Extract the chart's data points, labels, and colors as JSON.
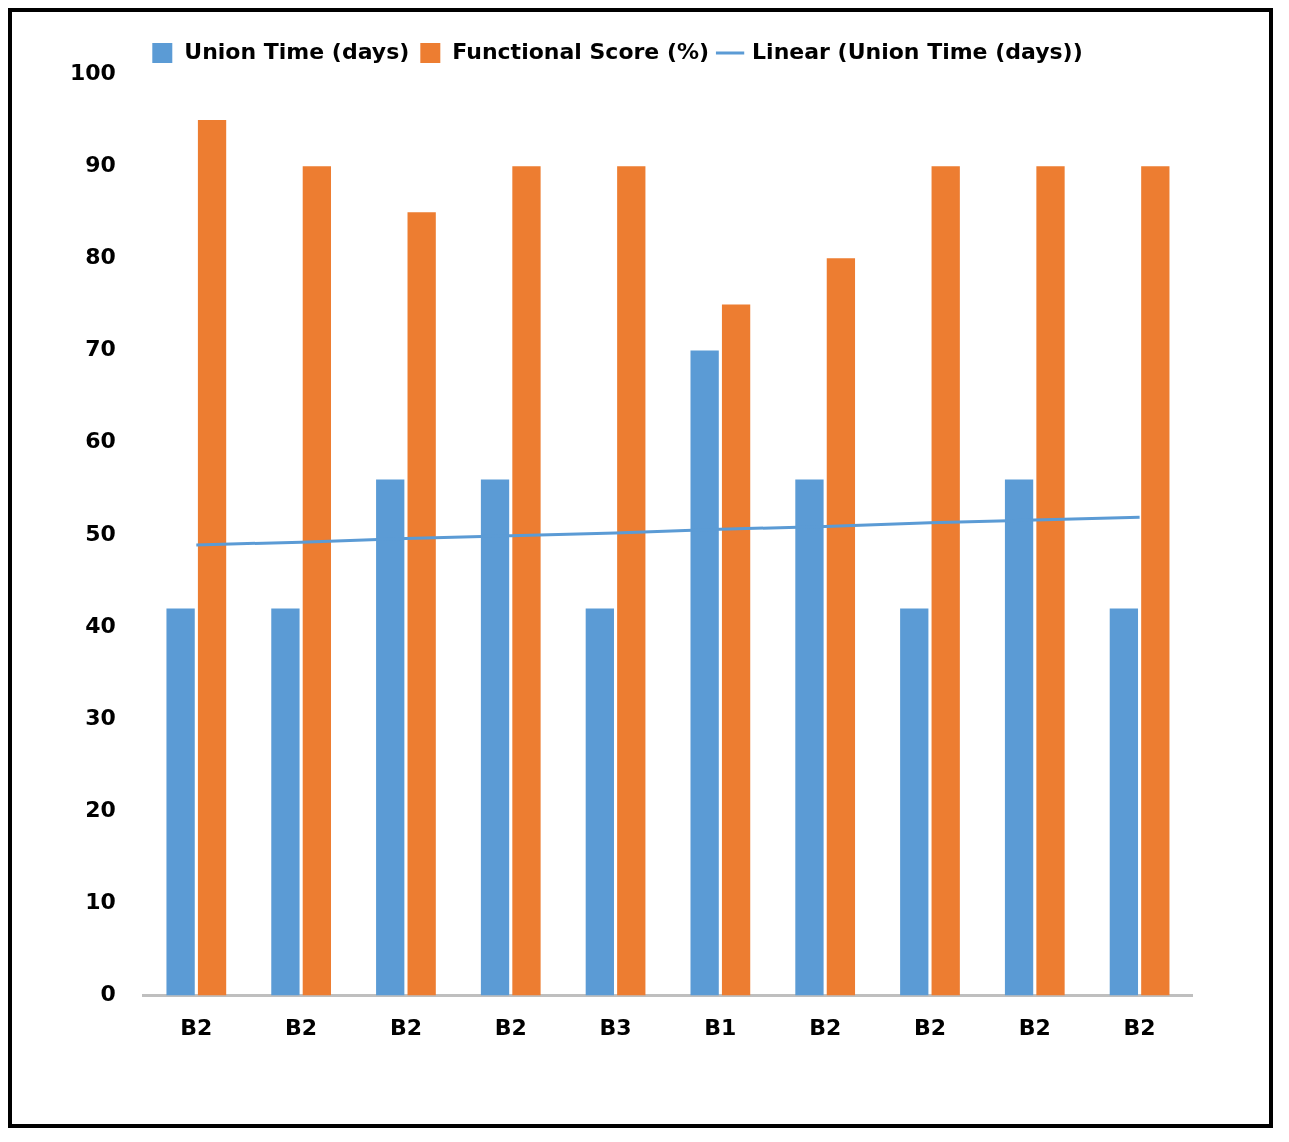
{
  "chart_data": {
    "type": "bar",
    "categories": [
      "B2",
      "B2",
      "B2",
      "B2",
      "B3",
      "B1",
      "B2",
      "B2",
      "B2",
      "B2"
    ],
    "series": [
      {
        "name": "Union Time (days)",
        "color": "#5b9bd5",
        "values": [
          42,
          42,
          56,
          56,
          42,
          70,
          56,
          42,
          56,
          42
        ]
      },
      {
        "name": "Functional Score (%)",
        "color": "#ed7d31",
        "values": [
          95,
          90,
          85,
          90,
          90,
          75,
          80,
          90,
          90,
          90
        ]
      },
      {
        "name": "Linear (Union Time (days))",
        "type": "line",
        "color": "#5b9bd5",
        "values": [
          48.9,
          49.2,
          49.6,
          49.9,
          50.2,
          50.6,
          50.9,
          51.3,
          51.6,
          51.9
        ]
      }
    ],
    "ylim": [
      0,
      100
    ],
    "yticks": [
      0,
      10,
      20,
      30,
      40,
      50,
      60,
      70,
      80,
      90,
      100
    ],
    "grid": false,
    "legend": "top",
    "marker": "none",
    "line_style": "solid"
  }
}
